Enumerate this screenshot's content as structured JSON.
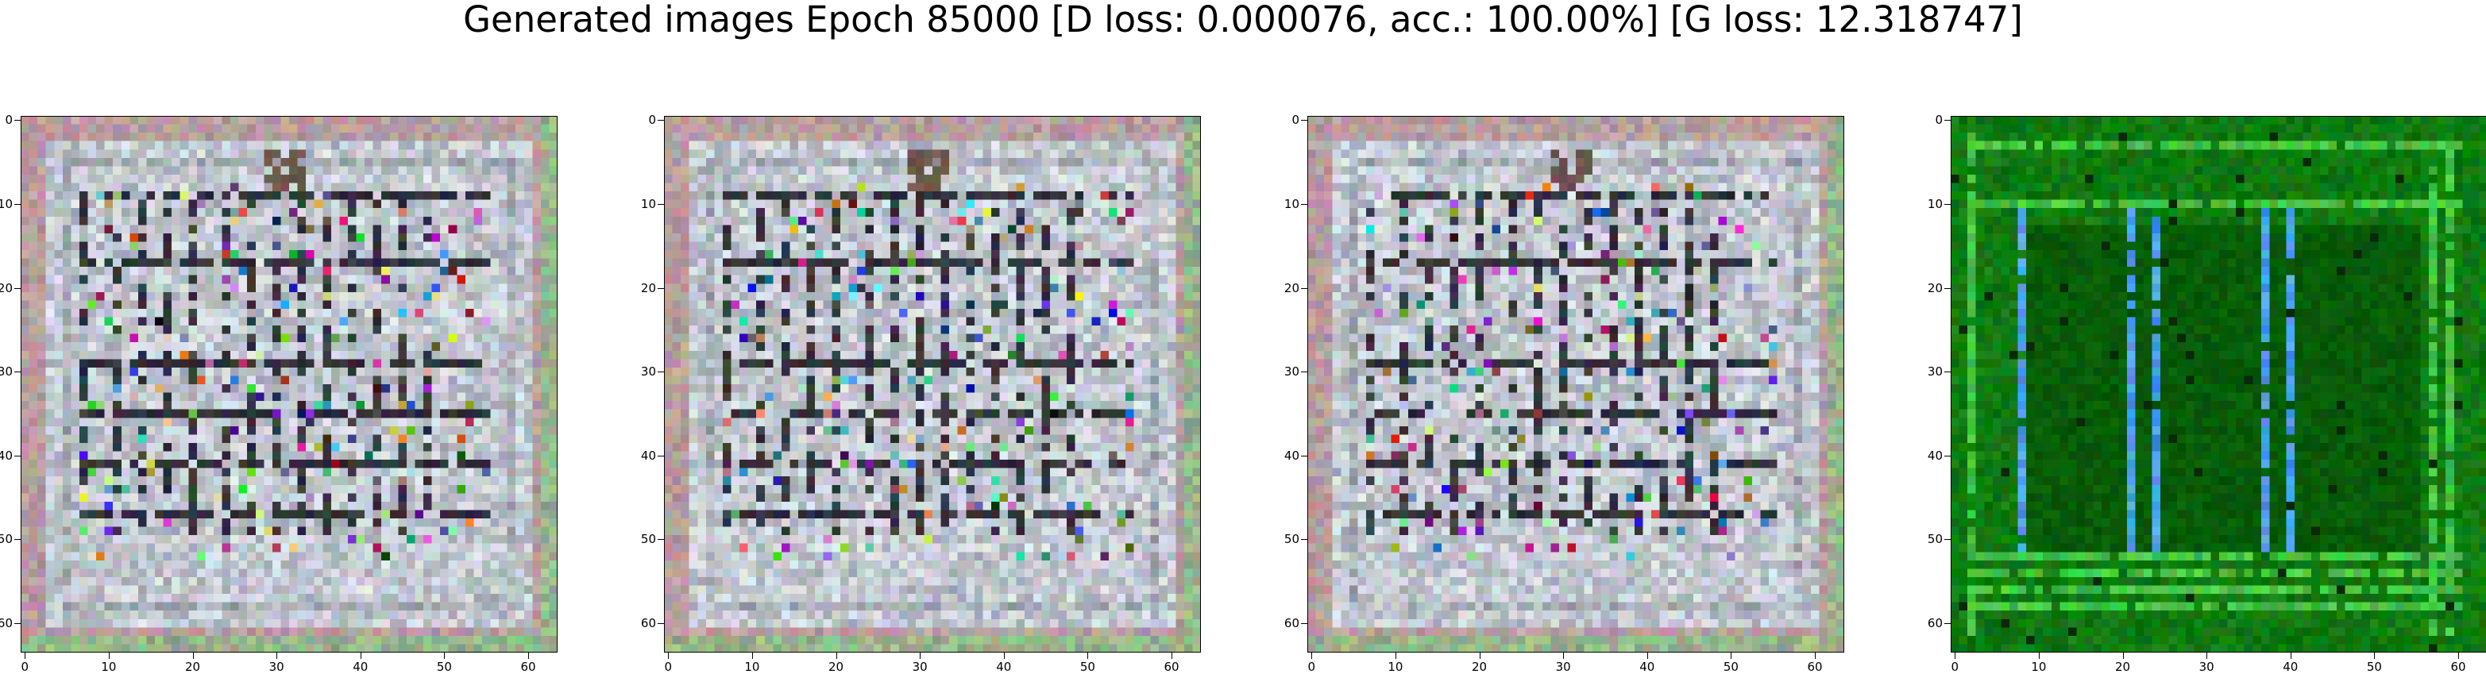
{
  "title": "Generated images Epoch 85000 [D loss: 0.000076, acc.: 100.00%] [G loss: 12.318747]",
  "image_size": 64,
  "x_ticks": [
    "0",
    "10",
    "20",
    "30",
    "40",
    "50",
    "60"
  ],
  "y_ticks": [
    "0",
    "10",
    "20",
    "30",
    "40",
    "50",
    "60"
  ],
  "colors": {
    "rgb_background": "#c2c8d0",
    "rgb_border": "#b79d9f",
    "rgb_dark_lines": "#1c1c24",
    "green_background": "#0f7a10",
    "green_lines": "#45c445",
    "blue_stripes": "#4a9cf0"
  },
  "panels": [
    {
      "name": "generated-sample-1",
      "style": "rgb"
    },
    {
      "name": "generated-sample-2",
      "style": "rgb"
    },
    {
      "name": "generated-sample-3",
      "style": "rgb"
    },
    {
      "name": "generated-sample-4",
      "style": "green"
    }
  ]
}
